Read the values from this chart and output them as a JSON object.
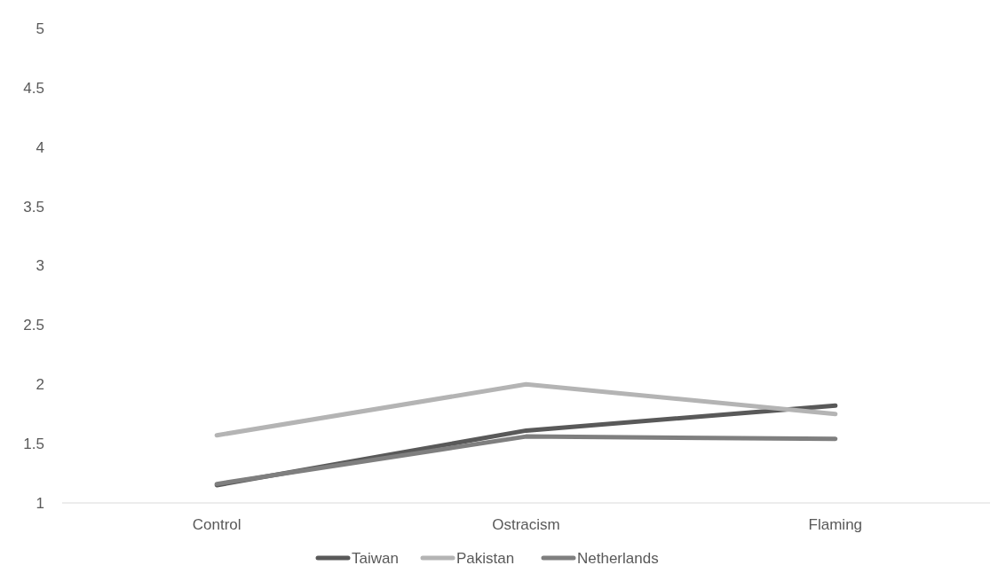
{
  "chart_data": {
    "type": "line",
    "categories": [
      "Control",
      "Ostracism",
      "Flaming"
    ],
    "series": [
      {
        "name": "Taiwan",
        "color": "#595959",
        "values": [
          1.15,
          1.61,
          1.82
        ]
      },
      {
        "name": "Pakistan",
        "color": "#b4b4b4",
        "values": [
          1.57,
          2.0,
          1.75
        ]
      },
      {
        "name": "Netherlands",
        "color": "#7f7f7f",
        "values": [
          1.16,
          1.56,
          1.54
        ]
      }
    ],
    "ylim": [
      1,
      5
    ],
    "yticks": [
      1,
      1.5,
      2,
      2.5,
      3,
      3.5,
      4,
      4.5,
      5
    ],
    "grid": false,
    "legend": "bottom",
    "marker": "none",
    "line_style": "solid"
  }
}
